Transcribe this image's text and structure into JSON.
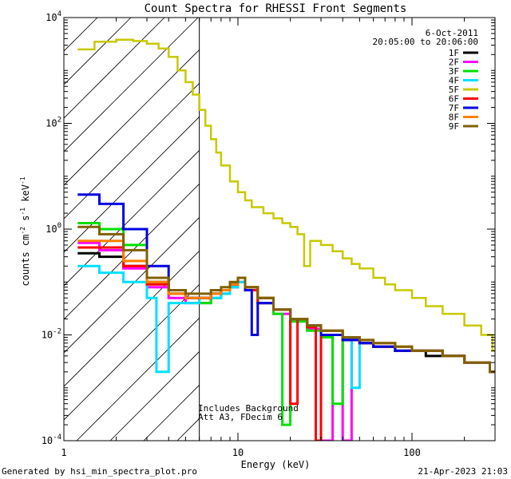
{
  "chart_data": {
    "type": "line",
    "title": "Count Spectra for RHESSI Front Segments",
    "xlabel": "Energy (keV)",
    "ylabel_parts": [
      "counts cm",
      "-2",
      " s",
      "-1",
      " keV",
      "-1"
    ],
    "x_scale": "log",
    "y_scale": "log",
    "xlim": [
      1.0,
      300.0
    ],
    "ylim": [
      0.0001,
      10000
    ],
    "x_ticks": [
      {
        "value": 1,
        "label": "1"
      },
      {
        "value": 10,
        "label": "10"
      },
      {
        "value": 100,
        "label": "100"
      }
    ],
    "y_ticks": [
      {
        "value": 0.0001,
        "base": "10",
        "exp": "-4"
      },
      {
        "value": 0.01,
        "base": "10",
        "exp": "-2"
      },
      {
        "value": 1,
        "base": "10",
        "exp": "0"
      },
      {
        "value": 100,
        "base": "10",
        "exp": "2"
      },
      {
        "value": 10000,
        "base": "10",
        "exp": "4"
      }
    ],
    "hatched_region": {
      "x_start": 1.0,
      "x_end": 6.0
    },
    "date": "6-Oct-2011",
    "time_range": "20:05:00 to 20:06:00",
    "annotations": [
      "Includes Background",
      "Att A3, FDecim 6"
    ],
    "series": [
      {
        "name": "1F",
        "color": "#000000",
        "points": [
          [
            1.2,
            0.35
          ],
          [
            1.6,
            0.3
          ],
          [
            2.2,
            0.2
          ],
          [
            3,
            0.1
          ],
          [
            4,
            0.06
          ],
          [
            5,
            0.05
          ],
          [
            6,
            0.05
          ],
          [
            7,
            0.06
          ],
          [
            8,
            0.07
          ],
          [
            9,
            0.09
          ],
          [
            10,
            0.12
          ],
          [
            11,
            0.08
          ],
          [
            13,
            0.05
          ],
          [
            16,
            0.03
          ],
          [
            20,
            0.02
          ],
          [
            25,
            0.015
          ],
          [
            30,
            0.012
          ],
          [
            40,
            0.008
          ],
          [
            50,
            0.007
          ],
          [
            60,
            0.006
          ],
          [
            70,
            0.006
          ],
          [
            80,
            0.005
          ],
          [
            100,
            0.005
          ],
          [
            120,
            0.004
          ],
          [
            150,
            0.004
          ],
          [
            200,
            0.003
          ],
          [
            280,
            0.002
          ]
        ]
      },
      {
        "name": "2F",
        "color": "#ff00ff",
        "points": [
          [
            1.2,
            0.55
          ],
          [
            1.6,
            0.4
          ],
          [
            2.2,
            0.18
          ],
          [
            3,
            0.08
          ],
          [
            4,
            0.05
          ],
          [
            5,
            0.04
          ],
          [
            6,
            0.04
          ],
          [
            7,
            0.05
          ],
          [
            8,
            0.06
          ],
          [
            9,
            0.08
          ],
          [
            10,
            0.1
          ],
          [
            11,
            0.07
          ],
          [
            13,
            0.04
          ],
          [
            16,
            0.025
          ],
          [
            20,
            0.018
          ],
          [
            25,
            0.013
          ],
          [
            30,
            0.0001
          ],
          [
            35,
            0.01
          ],
          [
            40,
            0.0001
          ],
          [
            45,
            0.008
          ],
          [
            50,
            0.007
          ],
          [
            60,
            0.006
          ],
          [
            80,
            0.005
          ],
          [
            100,
            0.005
          ],
          [
            150,
            0.004
          ],
          [
            200,
            0.003
          ],
          [
            280,
            0.002
          ]
        ]
      },
      {
        "name": "3F",
        "color": "#00e000",
        "points": [
          [
            1.2,
            1.3
          ],
          [
            1.6,
            1.0
          ],
          [
            2.2,
            0.5
          ],
          [
            3,
            0.12
          ],
          [
            4,
            0.06
          ],
          [
            5,
            0.05
          ],
          [
            6,
            0.04
          ],
          [
            7,
            0.05
          ],
          [
            8,
            0.06
          ],
          [
            9,
            0.08
          ],
          [
            10,
            0.12
          ],
          [
            11,
            0.07
          ],
          [
            13,
            0.04
          ],
          [
            16,
            0.025
          ],
          [
            18,
            0.0002
          ],
          [
            20,
            0.018
          ],
          [
            25,
            0.012
          ],
          [
            30,
            0.009
          ],
          [
            35,
            0.0005
          ],
          [
            40,
            0.008
          ],
          [
            50,
            0.007
          ],
          [
            60,
            0.006
          ],
          [
            80,
            0.005
          ],
          [
            100,
            0.005
          ],
          [
            150,
            0.004
          ],
          [
            200,
            0.003
          ],
          [
            280,
            0.002
          ]
        ]
      },
      {
        "name": "4F",
        "color": "#00e0ff",
        "points": [
          [
            1.2,
            0.2
          ],
          [
            1.6,
            0.15
          ],
          [
            2.2,
            0.1
          ],
          [
            3,
            0.05
          ],
          [
            3.4,
            0.002
          ],
          [
            4,
            0.04
          ],
          [
            5,
            0.04
          ],
          [
            6,
            0.05
          ],
          [
            7,
            0.05
          ],
          [
            8,
            0.06
          ],
          [
            9,
            0.08
          ],
          [
            10,
            0.1
          ],
          [
            11,
            0.07
          ],
          [
            13,
            0.04
          ],
          [
            16,
            0.03
          ],
          [
            20,
            0.02
          ],
          [
            25,
            0.015
          ],
          [
            30,
            0.01
          ],
          [
            40,
            0.008
          ],
          [
            45,
            0.001
          ],
          [
            50,
            0.007
          ],
          [
            60,
            0.006
          ],
          [
            80,
            0.005
          ],
          [
            100,
            0.005
          ],
          [
            150,
            0.004
          ],
          [
            200,
            0.003
          ],
          [
            280,
            0.002
          ]
        ]
      },
      {
        "name": "5F",
        "color": "#c8c800",
        "points": [
          [
            1.2,
            2500
          ],
          [
            1.5,
            3500
          ],
          [
            2,
            3800
          ],
          [
            2.5,
            3600
          ],
          [
            3,
            3200
          ],
          [
            3.5,
            2600
          ],
          [
            4,
            1800
          ],
          [
            4.5,
            1000
          ],
          [
            5,
            600
          ],
          [
            5.5,
            350
          ],
          [
            6,
            180
          ],
          [
            6.5,
            90
          ],
          [
            7,
            50
          ],
          [
            7.5,
            28
          ],
          [
            8,
            16
          ],
          [
            9,
            8
          ],
          [
            10,
            5
          ],
          [
            11,
            3.5
          ],
          [
            12,
            2.6
          ],
          [
            14,
            2.0
          ],
          [
            16,
            1.6
          ],
          [
            18,
            1.3
          ],
          [
            20,
            1.1
          ],
          [
            22,
            0.8
          ],
          [
            24,
            0.2
          ],
          [
            26,
            0.6
          ],
          [
            30,
            0.5
          ],
          [
            35,
            0.38
          ],
          [
            40,
            0.28
          ],
          [
            45,
            0.22
          ],
          [
            50,
            0.18
          ],
          [
            60,
            0.12
          ],
          [
            70,
            0.09
          ],
          [
            80,
            0.07
          ],
          [
            100,
            0.05
          ],
          [
            120,
            0.035
          ],
          [
            150,
            0.025
          ],
          [
            200,
            0.015
          ],
          [
            250,
            0.01
          ],
          [
            290,
            0.005
          ]
        ]
      },
      {
        "name": "6F",
        "color": "#ff0000",
        "points": [
          [
            1.2,
            0.45
          ],
          [
            1.6,
            0.45
          ],
          [
            2.2,
            0.2
          ],
          [
            3,
            0.09
          ],
          [
            4,
            0.06
          ],
          [
            5,
            0.05
          ],
          [
            6,
            0.05
          ],
          [
            7,
            0.06
          ],
          [
            8,
            0.07
          ],
          [
            9,
            0.09
          ],
          [
            10,
            0.12
          ],
          [
            11,
            0.07
          ],
          [
            13,
            0.04
          ],
          [
            16,
            0.03
          ],
          [
            20,
            0.0005
          ],
          [
            22,
            0.02
          ],
          [
            25,
            0.014
          ],
          [
            28,
            0.0001
          ],
          [
            30,
            0.01
          ],
          [
            40,
            0.008
          ],
          [
            50,
            0.007
          ],
          [
            60,
            0.006
          ],
          [
            80,
            0.005
          ],
          [
            100,
            0.005
          ],
          [
            150,
            0.004
          ],
          [
            200,
            0.003
          ],
          [
            280,
            0.002
          ]
        ]
      },
      {
        "name": "7F",
        "color": "#0000e0",
        "points": [
          [
            1.2,
            4.5
          ],
          [
            1.6,
            3.0
          ],
          [
            2.2,
            1.0
          ],
          [
            3,
            0.2
          ],
          [
            4,
            0.07
          ],
          [
            5,
            0.05
          ],
          [
            6,
            0.05
          ],
          [
            7,
            0.06
          ],
          [
            8,
            0.07
          ],
          [
            9,
            0.09
          ],
          [
            10,
            0.12
          ],
          [
            11,
            0.07
          ],
          [
            12,
            0.01
          ],
          [
            13,
            0.04
          ],
          [
            16,
            0.03
          ],
          [
            20,
            0.02
          ],
          [
            25,
            0.015
          ],
          [
            30,
            0.01
          ],
          [
            40,
            0.008
          ],
          [
            50,
            0.007
          ],
          [
            60,
            0.006
          ],
          [
            80,
            0.005
          ],
          [
            100,
            0.005
          ],
          [
            150,
            0.004
          ],
          [
            200,
            0.003
          ],
          [
            280,
            0.002
          ]
        ]
      },
      {
        "name": "8F",
        "color": "#ff8000",
        "points": [
          [
            1.2,
            0.6
          ],
          [
            1.6,
            0.6
          ],
          [
            2.2,
            0.25
          ],
          [
            3,
            0.1
          ],
          [
            4,
            0.06
          ],
          [
            5,
            0.05
          ],
          [
            6,
            0.05
          ],
          [
            7,
            0.06
          ],
          [
            8,
            0.07
          ],
          [
            9,
            0.09
          ],
          [
            10,
            0.12
          ],
          [
            11,
            0.08
          ],
          [
            13,
            0.05
          ],
          [
            16,
            0.03
          ],
          [
            20,
            0.02
          ],
          [
            25,
            0.015
          ],
          [
            30,
            0.012
          ],
          [
            40,
            0.009
          ],
          [
            50,
            0.008
          ],
          [
            60,
            0.007
          ],
          [
            80,
            0.006
          ],
          [
            100,
            0.005
          ],
          [
            150,
            0.004
          ],
          [
            200,
            0.003
          ],
          [
            280,
            0.002
          ]
        ]
      },
      {
        "name": "9F",
        "color": "#806000",
        "points": [
          [
            1.2,
            1.1
          ],
          [
            1.6,
            0.8
          ],
          [
            2.2,
            0.4
          ],
          [
            3,
            0.12
          ],
          [
            4,
            0.07
          ],
          [
            5,
            0.06
          ],
          [
            6,
            0.06
          ],
          [
            7,
            0.07
          ],
          [
            8,
            0.08
          ],
          [
            9,
            0.1
          ],
          [
            10,
            0.12
          ],
          [
            11,
            0.08
          ],
          [
            13,
            0.05
          ],
          [
            16,
            0.03
          ],
          [
            20,
            0.02
          ],
          [
            25,
            0.015
          ],
          [
            30,
            0.012
          ],
          [
            40,
            0.009
          ],
          [
            50,
            0.008
          ],
          [
            60,
            0.007
          ],
          [
            80,
            0.006
          ],
          [
            100,
            0.005
          ],
          [
            150,
            0.004
          ],
          [
            200,
            0.003
          ],
          [
            280,
            0.002
          ]
        ]
      }
    ]
  },
  "footer": {
    "generated_by": "Generated by hsi_min_spectra_plot.pro",
    "timestamp": "21-Apr-2023 21:03"
  }
}
